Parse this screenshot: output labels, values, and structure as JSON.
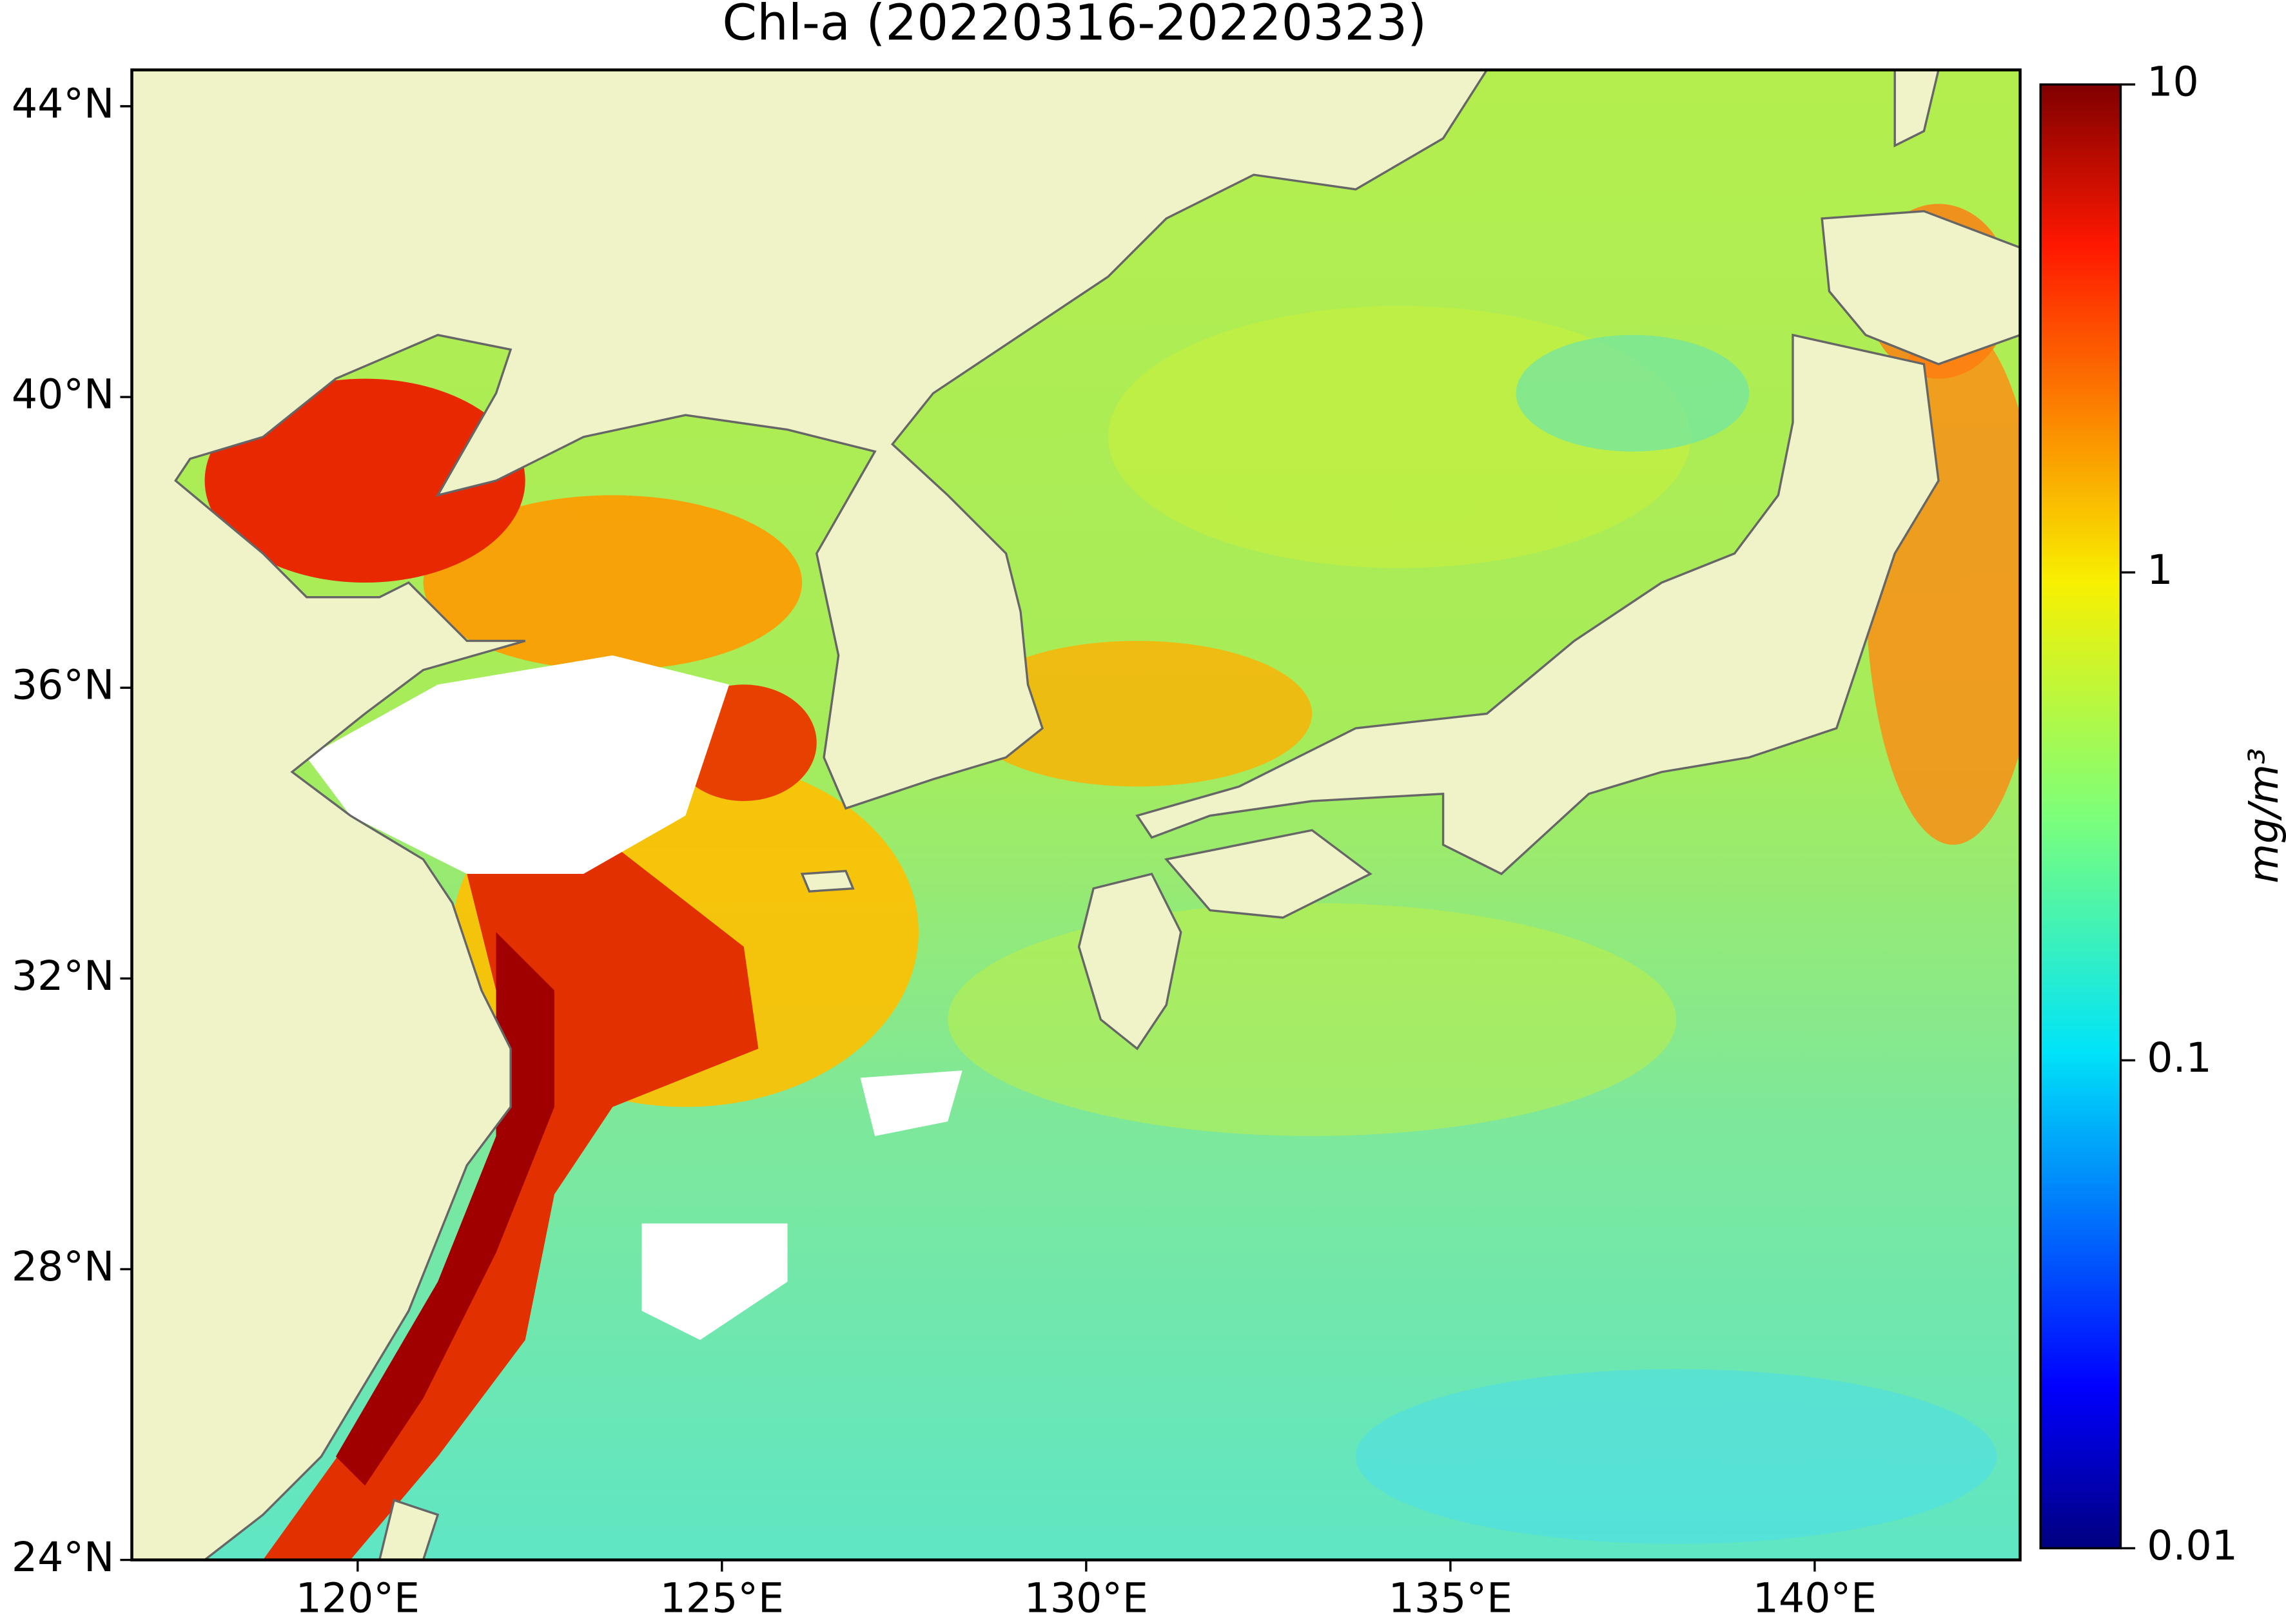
{
  "title": "Chl-a (20220316-20220323)",
  "map": {
    "xlim": [
      116.9,
      142.82
    ],
    "ylim": [
      24,
      44.5
    ],
    "xticks": [
      {
        "value": 120,
        "label": "120°E"
      },
      {
        "value": 125,
        "label": "125°E"
      },
      {
        "value": 130,
        "label": "130°E"
      },
      {
        "value": 135,
        "label": "135°E"
      },
      {
        "value": 140,
        "label": "140°E"
      }
    ],
    "yticks": [
      {
        "value": 24,
        "label": "24°N"
      },
      {
        "value": 28,
        "label": "28°N"
      },
      {
        "value": 32,
        "label": "32°N"
      },
      {
        "value": 36,
        "label": "36°N"
      },
      {
        "value": 40,
        "label": "40°N"
      },
      {
        "value": 44,
        "label": "44°N"
      }
    ]
  },
  "colorbar": {
    "label": "mg/m³",
    "scale": "log",
    "colormap": "jet",
    "lim": [
      0.01,
      10
    ],
    "ticks": [
      0.01,
      0.1,
      1,
      10
    ]
  }
}
